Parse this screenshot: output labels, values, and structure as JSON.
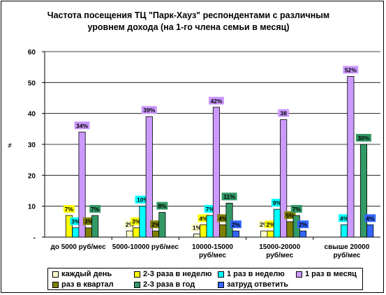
{
  "chart_data": {
    "type": "bar",
    "title": "Частота посещения ТЦ \"Парк-Хауз\" респондентами с различным уровнем дохода (на 1-го члена семьи в месяц)",
    "ylabel": "%",
    "ylim": [
      0,
      60
    ],
    "yticks": [
      "0",
      "10",
      "20",
      "30",
      "40",
      "50",
      "60"
    ],
    "grid": true,
    "legend_position": "bottom",
    "categories": [
      [
        "до 5000 руб/мес"
      ],
      [
        "5000-10000 руб/мес"
      ],
      [
        "10000-15000",
        "руб/мес"
      ],
      [
        "15000-20000",
        "руб/мес"
      ],
      [
        "свыше 20000",
        "руб/мес"
      ]
    ],
    "series": [
      {
        "name": "каждый день",
        "color": "#FFFFCC",
        "values": [
          null,
          2,
          1,
          2,
          null
        ],
        "labels": [
          "",
          "2%",
          "1%",
          "2%",
          ""
        ]
      },
      {
        "name": "2-3 раза в неделю",
        "color": "#FFFF00",
        "values": [
          7,
          3,
          4,
          2,
          null
        ],
        "labels": [
          "7%",
          "3%",
          "4%",
          "2%",
          ""
        ]
      },
      {
        "name": "1 раз в неделю",
        "color": "#00FFFF",
        "values": [
          3,
          10,
          7,
          9,
          4
        ],
        "labels": [
          "3%",
          "10%",
          "7%",
          "9%",
          "4%"
        ]
      },
      {
        "name": "1 раз в месяц",
        "color": "#CC99FF",
        "values": [
          34,
          39,
          42,
          38,
          52
        ],
        "labels": [
          "34%",
          "39%",
          "42%",
          "38",
          "52%"
        ]
      },
      {
        "name": "раз в квартал",
        "color": "#808000",
        "values": [
          3,
          2,
          4,
          5,
          null
        ],
        "labels": [
          "3%",
          "2%",
          "4%",
          "5%",
          ""
        ]
      },
      {
        "name": "2-3 раза в год",
        "color": "#339966",
        "values": [
          7,
          8,
          11,
          7,
          30
        ],
        "labels": [
          "7%",
          "8%",
          "11%",
          "7%",
          "30%"
        ]
      },
      {
        "name": "затруд ответить",
        "color": "#3366FF",
        "values": [
          null,
          null,
          2,
          2,
          4
        ],
        "labels": [
          "",
          "",
          "2%",
          "2%",
          "4%"
        ]
      }
    ]
  }
}
